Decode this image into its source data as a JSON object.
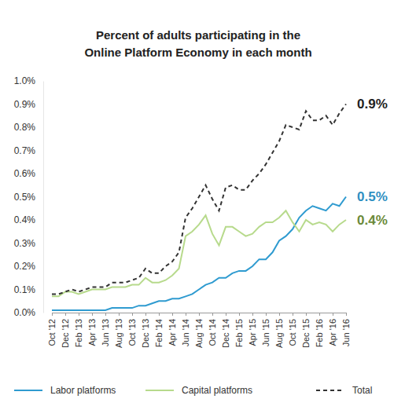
{
  "chart_data": {
    "type": "line",
    "title": [
      "Percent of adults participating in the",
      "Online Platform Economy in each month"
    ],
    "categories": [
      "Oct '12",
      null,
      "Dec '12",
      null,
      "Feb '13",
      null,
      "Apr '13",
      null,
      "Jun '13",
      null,
      "Aug '13",
      null,
      "Oct '13",
      null,
      "Dec '13",
      null,
      "Feb '14",
      null,
      "Apr '14",
      null,
      "Jun '14",
      null,
      "Aug '14",
      null,
      "Oct '14",
      null,
      "Dec '14",
      null,
      "Feb '15",
      null,
      "Apr '15",
      null,
      "Jun '15",
      null,
      "Aug '15",
      null,
      "Oct '15",
      null,
      "Dec '15",
      null,
      "Feb '16",
      null,
      "Apr '16",
      null,
      "Jun '16"
    ],
    "series": [
      {
        "name": "Labor platforms",
        "color": "#2f9bd0",
        "line_style": "solid",
        "values": [
          0.01,
          0.01,
          0.01,
          0.01,
          0.01,
          0.01,
          0.01,
          0.01,
          0.01,
          0.02,
          0.02,
          0.02,
          0.02,
          0.03,
          0.03,
          0.04,
          0.05,
          0.05,
          0.06,
          0.06,
          0.07,
          0.08,
          0.1,
          0.12,
          0.13,
          0.15,
          0.15,
          0.17,
          0.18,
          0.18,
          0.2,
          0.23,
          0.23,
          0.26,
          0.31,
          0.33,
          0.36,
          0.41,
          0.44,
          0.46,
          0.45,
          0.44,
          0.47,
          0.46,
          0.5
        ]
      },
      {
        "name": "Capital platforms",
        "color": "#b7da8c",
        "line_style": "solid",
        "values": [
          0.07,
          0.07,
          0.09,
          0.09,
          0.08,
          0.09,
          0.1,
          0.1,
          0.1,
          0.11,
          0.11,
          0.11,
          0.12,
          0.12,
          0.15,
          0.13,
          0.13,
          0.14,
          0.16,
          0.19,
          0.33,
          0.35,
          0.38,
          0.42,
          0.34,
          0.29,
          0.37,
          0.37,
          0.35,
          0.33,
          0.34,
          0.37,
          0.39,
          0.39,
          0.41,
          0.44,
          0.39,
          0.35,
          0.4,
          0.38,
          0.39,
          0.38,
          0.35,
          0.38,
          0.4
        ]
      },
      {
        "name": "Total",
        "color": "#333333",
        "line_style": "dashed",
        "values": [
          0.08,
          0.08,
          0.09,
          0.1,
          0.09,
          0.1,
          0.11,
          0.11,
          0.11,
          0.13,
          0.13,
          0.13,
          0.14,
          0.15,
          0.19,
          0.17,
          0.17,
          0.2,
          0.22,
          0.26,
          0.41,
          0.45,
          0.5,
          0.55,
          0.49,
          0.44,
          0.54,
          0.55,
          0.53,
          0.53,
          0.57,
          0.6,
          0.64,
          0.69,
          0.74,
          0.81,
          0.8,
          0.79,
          0.87,
          0.83,
          0.83,
          0.85,
          0.81,
          0.86,
          0.9
        ]
      }
    ],
    "annotations": [
      {
        "text": "0.9%",
        "series": "Total",
        "color": "#222222"
      },
      {
        "text": "0.5%",
        "series": "Labor platforms",
        "color": "#2f8fc2"
      },
      {
        "text": "0.4%",
        "series": "Capital platforms",
        "color": "#6b8a3a"
      }
    ],
    "ylim": [
      0,
      1.0
    ],
    "yticks": [
      {
        "value": 0,
        "label": "0.0%"
      },
      {
        "value": 0.1,
        "label": "0.1%"
      },
      {
        "value": 0.2,
        "label": "0.2%"
      },
      {
        "value": 0.3,
        "label": "0.3%"
      },
      {
        "value": 0.4,
        "label": "0.4%"
      },
      {
        "value": 0.5,
        "label": "0.5%"
      },
      {
        "value": 0.6,
        "label": "0.6%"
      },
      {
        "value": 0.7,
        "label": "0.7%"
      },
      {
        "value": 0.8,
        "label": "0.8%"
      },
      {
        "value": 0.9,
        "label": "0.9%"
      },
      {
        "value": 1.0,
        "label": "1.0%"
      }
    ],
    "grid": false,
    "legend": "bottom"
  }
}
